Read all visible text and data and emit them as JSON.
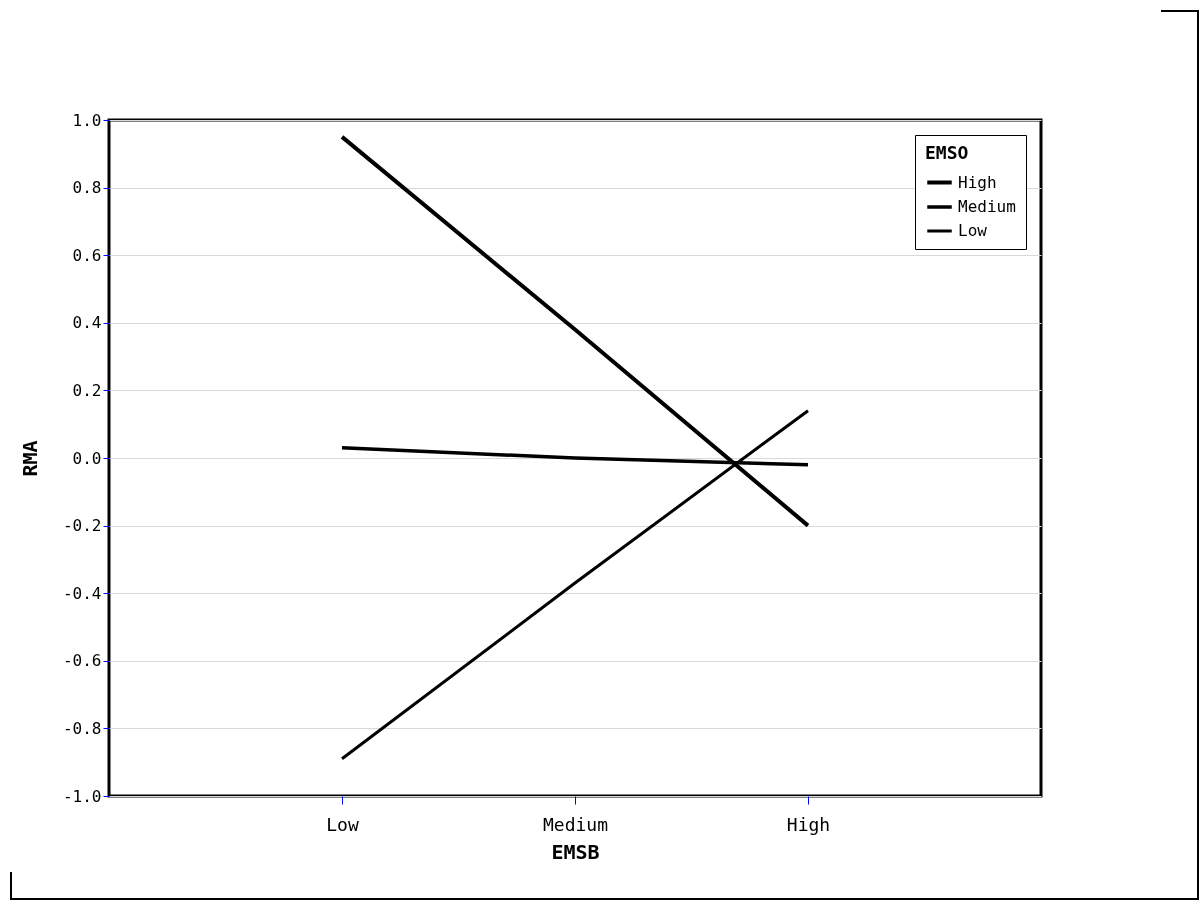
{
  "chart_data": {
    "type": "line",
    "xlabel": "EMSB",
    "ylabel": "RMA",
    "legend_title": "EMSO",
    "categories": [
      "Low",
      "Medium",
      "High"
    ],
    "series": [
      {
        "name": "High",
        "color": "#000000",
        "values": [
          0.95,
          0.38,
          -0.2
        ]
      },
      {
        "name": "Medium",
        "color": "#000000",
        "values": [
          0.03,
          0.0,
          -0.02
        ]
      },
      {
        "name": "Low",
        "color": "#000000",
        "values": [
          -0.89,
          -0.37,
          0.14
        ]
      }
    ],
    "ylim": [
      -1,
      1
    ],
    "yticks": [
      {
        "value": -1,
        "label": "-1.0"
      },
      -0.8,
      -0.6,
      -0.4,
      -0.2,
      {
        "value": 0,
        "label": "0.0"
      },
      0.2,
      0.4,
      0.6,
      0.8,
      {
        "value": 1,
        "label": "1.0"
      }
    ],
    "grid": "y",
    "legend": "top right",
    "marker": "none",
    "line_style": "solid"
  }
}
